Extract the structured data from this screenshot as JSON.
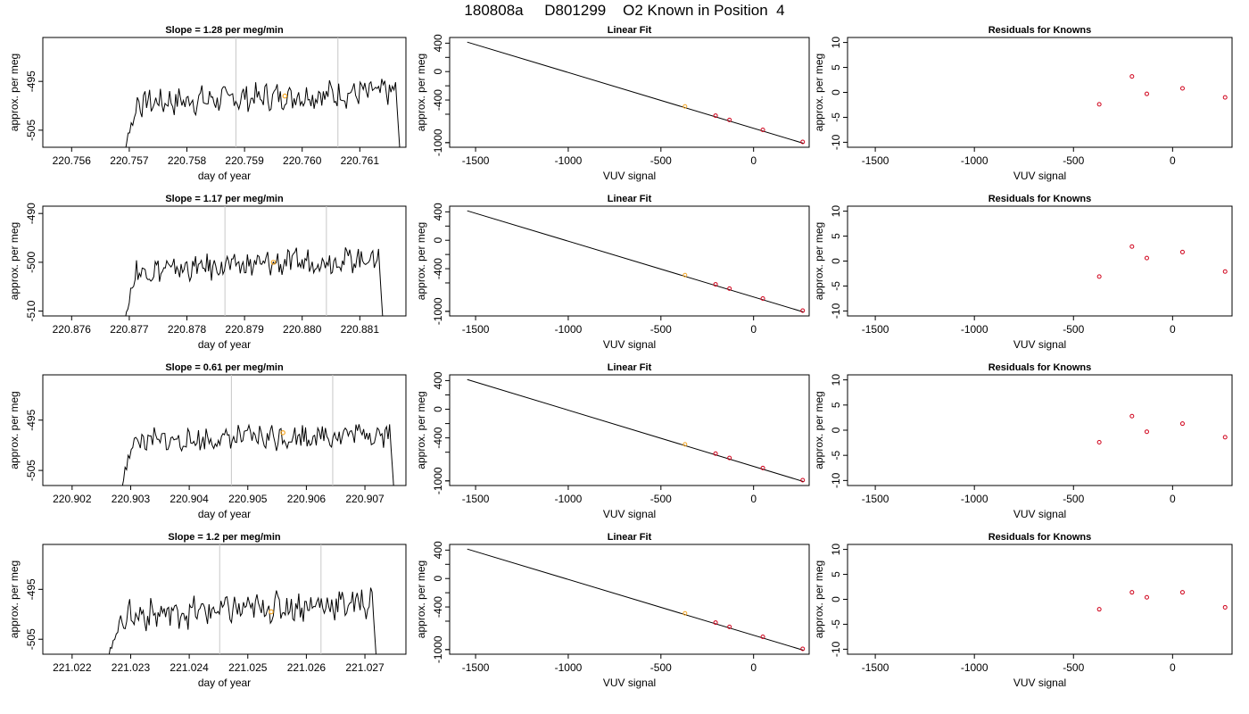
{
  "header": {
    "title": "180808a     D801299    O2 Known in Position  4"
  },
  "colors": {
    "line": "#000000",
    "marker_orange": "#f5a623",
    "residual_red": "#d0021b",
    "vline_grey": "#c8c8c8"
  },
  "chart_data": [
    {
      "type": "line",
      "row": 0,
      "title": "Slope =  1.28  per meg/min",
      "xlabel": "day of year",
      "ylabel": "approx. per meg",
      "xlim": [
        220.7555,
        220.7618
      ],
      "ylim": [
        -508.5,
        -486.0
      ],
      "xticks": [
        220.756,
        220.757,
        220.758,
        220.759,
        220.76,
        220.761
      ],
      "xtick_labels": [
        "220.756",
        "220.757",
        "220.758",
        "220.759",
        "220.760",
        "220.761"
      ],
      "yticks": [
        -505,
        -495
      ],
      "ytick_labels": [
        "-505",
        "-495"
      ],
      "vlines": [
        220.75885,
        220.76062
      ],
      "marker": {
        "x": 220.7597,
        "y": -498.0
      },
      "series": {
        "x_start": 220.7569,
        "x_end": 220.7617,
        "start_y": -510,
        "base": -499.5,
        "rise": 2.5,
        "amp": 2.4,
        "end_y": -510
      }
    },
    {
      "type": "line",
      "row": 1,
      "title": "Slope =  1.17  per meg/min",
      "xlabel": "day of year",
      "ylabel": "approx. per meg",
      "xlim": [
        220.8755,
        220.8818
      ],
      "ylim": [
        -511.0,
        -488.5
      ],
      "xticks": [
        220.876,
        220.877,
        220.878,
        220.879,
        220.88,
        220.881
      ],
      "xtick_labels": [
        "220.876",
        "220.877",
        "220.878",
        "220.879",
        "220.880",
        "220.881"
      ],
      "yticks": [
        -510,
        -500,
        -490
      ],
      "ytick_labels": [
        "-510",
        "-500",
        "-490"
      ],
      "vlines": [
        220.87866,
        220.88042
      ],
      "marker": {
        "x": 220.8795,
        "y": -500.0
      },
      "series": {
        "x_start": 220.8769,
        "x_end": 220.8814,
        "start_y": -512,
        "base": -502.0,
        "rise": 3.0,
        "amp": 2.3,
        "end_y": -512
      }
    },
    {
      "type": "line",
      "row": 2,
      "title": "Slope =  0.61  per meg/min",
      "xlabel": "day of year",
      "ylabel": "approx. per meg",
      "xlim": [
        220.9015,
        220.9077
      ],
      "ylim": [
        -508.0,
        -486.0
      ],
      "xticks": [
        220.902,
        220.903,
        220.904,
        220.905,
        220.906,
        220.907
      ],
      "xtick_labels": [
        "220.902",
        "220.903",
        "220.904",
        "220.905",
        "220.906",
        "220.907"
      ],
      "yticks": [
        -505,
        -495
      ],
      "ytick_labels": [
        "-505",
        "-495"
      ],
      "vlines": [
        220.90472,
        220.90645
      ],
      "marker": {
        "x": 220.9056,
        "y": -497.5
      },
      "series": {
        "x_start": 220.9028,
        "x_end": 220.9075,
        "start_y": -510,
        "base": -499.5,
        "rise": 2.0,
        "amp": 2.2,
        "end_y": -510
      }
    },
    {
      "type": "line",
      "row": 3,
      "title": "Slope =  1.2  per meg/min",
      "xlabel": "day of year",
      "ylabel": "approx. per meg",
      "xlim": [
        221.0215,
        221.0277
      ],
      "ylim": [
        -508.0,
        -486.0
      ],
      "xticks": [
        221.022,
        221.023,
        221.024,
        221.025,
        221.026,
        221.027
      ],
      "xtick_labels": [
        "221.022",
        "221.023",
        "221.024",
        "221.025",
        "221.026",
        "221.027"
      ],
      "yticks": [
        -505,
        -495
      ],
      "ytick_labels": [
        "-505",
        "-495"
      ],
      "vlines": [
        221.02452,
        221.02625
      ],
      "marker": {
        "x": 221.0254,
        "y": -499.5
      },
      "series": {
        "x_start": 221.0226,
        "x_end": 221.0272,
        "start_y": -510,
        "base": -500.5,
        "rise": 3.0,
        "amp": 2.6,
        "end_y": -510
      }
    },
    {
      "type": "scatter",
      "row": 0,
      "title": "Linear Fit",
      "xlabel": "VUV signal",
      "ylabel": "approx. per meg",
      "xlim": [
        -1640,
        300
      ],
      "ylim": [
        -1065,
        480
      ],
      "xticks": [
        -1500,
        -1000,
        -500,
        0
      ],
      "xtick_labels": [
        "-1500",
        "-1000",
        "-500",
        "0"
      ],
      "yticks": [
        -1000,
        -600,
        -200,
        200
      ],
      "ytick_labels": [],
      "ylabel_ticks": [
        400,
        0,
        -400,
        -1000
      ],
      "ylabel_tick_labels": [
        "400",
        "0",
        "-400",
        "-1000"
      ],
      "fit_line": {
        "x": [
          -1545,
          270
        ],
        "y": [
          415,
          -1010
        ]
      },
      "points": [
        {
          "x": -370,
          "y": -490,
          "highlight": true
        },
        {
          "x": -205,
          "y": -620,
          "highlight": false
        },
        {
          "x": -130,
          "y": -680,
          "highlight": false
        },
        {
          "x": 50,
          "y": -820,
          "highlight": false
        },
        {
          "x": 265,
          "y": -990,
          "highlight": false
        }
      ]
    },
    {
      "type": "scatter",
      "row": 1,
      "title": "Linear Fit",
      "xlabel": "VUV signal",
      "ylabel": "approx. per meg",
      "xlim": [
        -1640,
        300
      ],
      "ylim": [
        -1065,
        480
      ],
      "xticks": [
        -1500,
        -1000,
        -500,
        0
      ],
      "xtick_labels": [
        "-1500",
        "-1000",
        "-500",
        "0"
      ],
      "yticks": [
        -1000,
        -600,
        -200,
        200
      ],
      "ytick_labels": [],
      "ylabel_ticks": [
        400,
        0,
        -400,
        -1000
      ],
      "ylabel_tick_labels": [
        "400",
        "0",
        "-400",
        "-1000"
      ],
      "fit_line": {
        "x": [
          -1545,
          270
        ],
        "y": [
          415,
          -1010
        ]
      },
      "points": [
        {
          "x": -370,
          "y": -490,
          "highlight": true
        },
        {
          "x": -205,
          "y": -620,
          "highlight": false
        },
        {
          "x": -130,
          "y": -680,
          "highlight": false
        },
        {
          "x": 50,
          "y": -820,
          "highlight": false
        },
        {
          "x": 265,
          "y": -990,
          "highlight": false
        }
      ]
    },
    {
      "type": "scatter",
      "row": 2,
      "title": "Linear Fit",
      "xlabel": "VUV signal",
      "ylabel": "approx. per meg",
      "xlim": [
        -1640,
        300
      ],
      "ylim": [
        -1065,
        480
      ],
      "xticks": [
        -1500,
        -1000,
        -500,
        0
      ],
      "xtick_labels": [
        "-1500",
        "-1000",
        "-500",
        "0"
      ],
      "yticks": [
        -1000,
        -600,
        -200,
        200
      ],
      "ytick_labels": [],
      "ylabel_ticks": [
        400,
        0,
        -400,
        -1000
      ],
      "ylabel_tick_labels": [
        "400",
        "0",
        "-400",
        "-1000"
      ],
      "fit_line": {
        "x": [
          -1545,
          270
        ],
        "y": [
          415,
          -1010
        ]
      },
      "points": [
        {
          "x": -370,
          "y": -490,
          "highlight": true
        },
        {
          "x": -205,
          "y": -620,
          "highlight": false
        },
        {
          "x": -130,
          "y": -680,
          "highlight": false
        },
        {
          "x": 50,
          "y": -820,
          "highlight": false
        },
        {
          "x": 265,
          "y": -990,
          "highlight": false
        }
      ]
    },
    {
      "type": "scatter",
      "row": 3,
      "title": "Linear Fit",
      "xlabel": "VUV signal",
      "ylabel": "approx. per meg",
      "xlim": [
        -1640,
        300
      ],
      "ylim": [
        -1065,
        480
      ],
      "xticks": [
        -1500,
        -1000,
        -500,
        0
      ],
      "xtick_labels": [
        "-1500",
        "-1000",
        "-500",
        "0"
      ],
      "yticks": [
        -1000,
        -600,
        -200,
        200
      ],
      "ytick_labels": [],
      "ylabel_ticks": [
        400,
        0,
        -400,
        -1000
      ],
      "ylabel_tick_labels": [
        "400",
        "0",
        "-400",
        "-1000"
      ],
      "fit_line": {
        "x": [
          -1545,
          270
        ],
        "y": [
          415,
          -1010
        ]
      },
      "points": [
        {
          "x": -370,
          "y": -490,
          "highlight": true
        },
        {
          "x": -205,
          "y": -620,
          "highlight": false
        },
        {
          "x": -130,
          "y": -680,
          "highlight": false
        },
        {
          "x": 50,
          "y": -820,
          "highlight": false
        },
        {
          "x": 265,
          "y": -990,
          "highlight": false
        }
      ]
    },
    {
      "type": "scatter",
      "row": 0,
      "title": "Residuals for Knowns",
      "xlabel": "VUV signal",
      "ylabel": "approx. per meg",
      "xlim": [
        -1640,
        300
      ],
      "ylim": [
        -11,
        11
      ],
      "xticks": [
        -1500,
        -1000,
        -500,
        0
      ],
      "xtick_labels": [
        "-1500",
        "-1000",
        "-500",
        "0"
      ],
      "yticks": [
        -10,
        -5,
        0,
        5,
        10
      ],
      "ytick_labels": [
        "-10",
        "-5",
        "0",
        "5",
        "10"
      ],
      "points": [
        {
          "x": -370,
          "y": -2.4
        },
        {
          "x": -205,
          "y": 3.2
        },
        {
          "x": -130,
          "y": -0.3
        },
        {
          "x": 50,
          "y": 0.8
        },
        {
          "x": 265,
          "y": -1.0
        }
      ]
    },
    {
      "type": "scatter",
      "row": 1,
      "title": "Residuals for Knowns",
      "xlabel": "VUV signal",
      "ylabel": "approx. per meg",
      "xlim": [
        -1640,
        300
      ],
      "ylim": [
        -11,
        11
      ],
      "xticks": [
        -1500,
        -1000,
        -500,
        0
      ],
      "xtick_labels": [
        "-1500",
        "-1000",
        "-500",
        "0"
      ],
      "yticks": [
        -10,
        -5,
        0,
        5,
        10
      ],
      "ytick_labels": [
        "-10",
        "-5",
        "0",
        "5",
        "10"
      ],
      "points": [
        {
          "x": -370,
          "y": -3.1
        },
        {
          "x": -205,
          "y": 2.9
        },
        {
          "x": -130,
          "y": 0.6
        },
        {
          "x": 50,
          "y": 1.8
        },
        {
          "x": 265,
          "y": -2.1
        }
      ]
    },
    {
      "type": "scatter",
      "row": 2,
      "title": "Residuals for Knowns",
      "xlabel": "VUV signal",
      "ylabel": "approx. per meg",
      "xlim": [
        -1640,
        300
      ],
      "ylim": [
        -11,
        11
      ],
      "xticks": [
        -1500,
        -1000,
        -500,
        0
      ],
      "xtick_labels": [
        "-1500",
        "-1000",
        "-500",
        "0"
      ],
      "yticks": [
        -10,
        -5,
        0,
        5,
        10
      ],
      "ytick_labels": [
        "-10",
        "-5",
        "0",
        "5",
        "10"
      ],
      "points": [
        {
          "x": -370,
          "y": -2.4
        },
        {
          "x": -205,
          "y": 2.8
        },
        {
          "x": -130,
          "y": -0.3
        },
        {
          "x": 50,
          "y": 1.3
        },
        {
          "x": 265,
          "y": -1.4
        }
      ]
    },
    {
      "type": "scatter",
      "row": 3,
      "title": "Residuals for Knowns",
      "xlabel": "VUV signal",
      "ylabel": "approx. per meg",
      "xlim": [
        -1640,
        300
      ],
      "ylim": [
        -11,
        11
      ],
      "xticks": [
        -1500,
        -1000,
        -500,
        0
      ],
      "xtick_labels": [
        "-1500",
        "-1000",
        "-500",
        "0"
      ],
      "yticks": [
        -10,
        -5,
        0,
        5,
        10
      ],
      "ytick_labels": [
        "-10",
        "-5",
        "0",
        "5",
        "10"
      ],
      "points": [
        {
          "x": -370,
          "y": -2.0
        },
        {
          "x": -205,
          "y": 1.4
        },
        {
          "x": -130,
          "y": 0.4
        },
        {
          "x": 50,
          "y": 1.4
        },
        {
          "x": 265,
          "y": -1.6
        }
      ]
    }
  ]
}
